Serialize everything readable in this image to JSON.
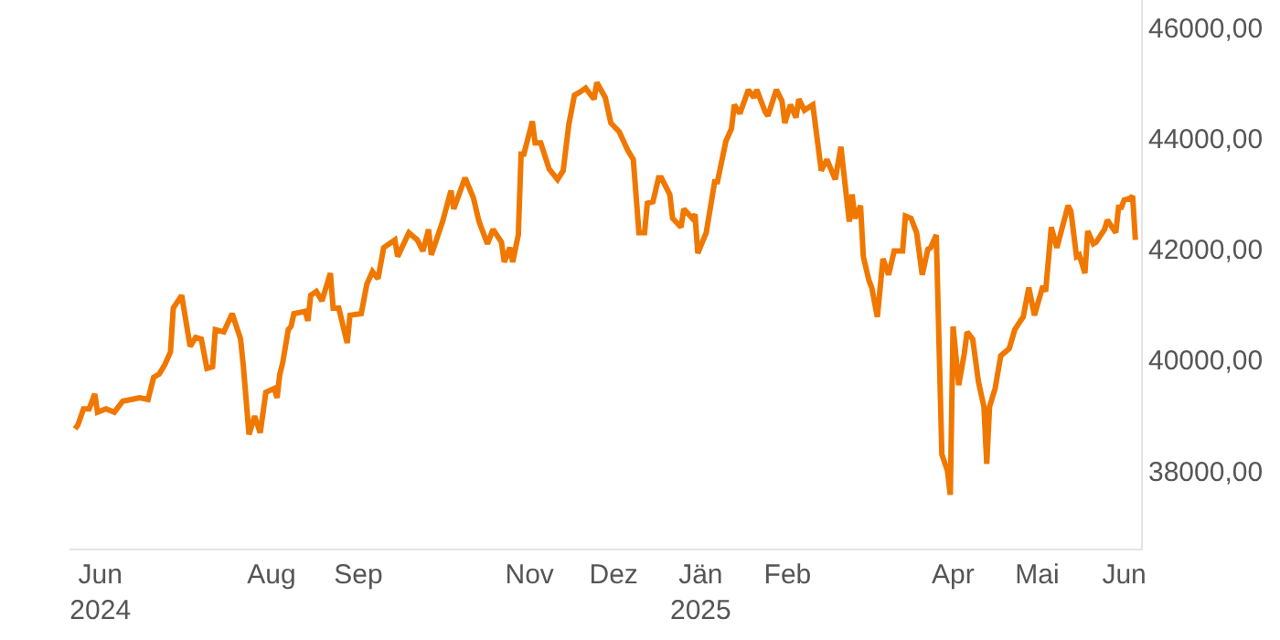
{
  "chart_data": {
    "type": "line",
    "x": [
      "2024-05-23",
      "2024-05-24",
      "2024-05-26",
      "2024-05-28",
      "2024-05-30",
      "2024-05-31",
      "2024-06-03",
      "2024-06-06",
      "2024-06-09",
      "2024-06-12",
      "2024-06-15",
      "2024-06-18",
      "2024-06-20",
      "2024-06-22",
      "2024-06-24",
      "2024-06-26",
      "2024-06-27",
      "2024-06-30",
      "2024-07-03",
      "2024-07-05",
      "2024-07-07",
      "2024-07-09",
      "2024-07-11",
      "2024-07-12",
      "2024-07-15",
      "2024-07-18",
      "2024-07-21",
      "2024-07-22",
      "2024-07-24",
      "2024-07-26",
      "2024-07-28",
      "2024-07-30",
      "2024-08-02",
      "2024-08-03",
      "2024-08-04",
      "2024-08-05",
      "2024-08-07",
      "2024-08-08",
      "2024-08-09",
      "2024-08-13",
      "2024-08-14",
      "2024-08-15",
      "2024-08-17",
      "2024-08-19",
      "2024-08-22",
      "2024-08-23",
      "2024-08-25",
      "2024-08-28",
      "2024-08-29",
      "2024-09-02",
      "2024-09-04",
      "2024-09-06",
      "2024-09-08",
      "2024-09-10",
      "2024-09-14",
      "2024-09-15",
      "2024-09-19",
      "2024-09-22",
      "2024-09-24",
      "2024-09-26",
      "2024-09-27",
      "2024-10-01",
      "2024-10-04",
      "2024-10-05",
      "2024-10-09",
      "2024-10-12",
      "2024-10-14",
      "2024-10-17",
      "2024-10-19",
      "2024-10-22",
      "2024-10-23",
      "2024-10-25",
      "2024-10-26",
      "2024-10-28",
      "2024-10-29",
      "2024-10-30",
      "2024-11-02",
      "2024-11-03",
      "2024-11-05",
      "2024-11-08",
      "2024-11-11",
      "2024-11-13",
      "2024-11-15",
      "2024-11-17",
      "2024-11-19",
      "2024-11-21",
      "2024-11-24",
      "2024-11-25",
      "2024-11-28",
      "2024-11-30",
      "2024-12-03",
      "2024-12-06",
      "2024-12-08",
      "2024-12-10",
      "2024-12-12",
      "2024-12-13",
      "2024-12-15",
      "2024-12-17",
      "2024-12-18",
      "2024-12-21",
      "2024-12-22",
      "2024-12-25",
      "2024-12-26",
      "2024-12-29",
      "2024-12-30",
      "2024-12-31",
      "2025-01-03",
      "2025-01-06",
      "2025-01-07",
      "2025-01-10",
      "2025-01-12",
      "2025-01-13",
      "2025-01-15",
      "2025-01-18",
      "2025-01-20",
      "2025-01-21",
      "2025-01-24",
      "2025-01-25",
      "2025-01-28",
      "2025-01-30",
      "2025-01-31",
      "2025-02-02",
      "2025-02-04",
      "2025-02-05",
      "2025-02-07",
      "2025-02-10",
      "2025-02-13",
      "2025-02-15",
      "2025-02-18",
      "2025-02-20",
      "2025-02-23",
      "2025-02-24",
      "2025-02-25",
      "2025-02-27",
      "2025-02-28",
      "2025-03-02",
      "2025-03-03",
      "2025-03-05",
      "2025-03-07",
      "2025-03-09",
      "2025-03-11",
      "2025-03-14",
      "2025-03-15",
      "2025-03-17",
      "2025-03-19",
      "2025-03-21",
      "2025-03-23",
      "2025-03-24",
      "2025-03-26",
      "2025-03-28",
      "2025-03-30",
      "2025-03-31",
      "2025-04-01",
      "2025-04-03",
      "2025-04-05",
      "2025-04-06",
      "2025-04-08",
      "2025-04-10",
      "2025-04-12",
      "2025-04-13",
      "2025-04-14",
      "2025-04-16",
      "2025-04-18",
      "2025-04-21",
      "2025-04-23",
      "2025-04-25",
      "2025-04-26",
      "2025-04-28",
      "2025-04-30",
      "2025-05-03",
      "2025-05-04",
      "2025-05-06",
      "2025-05-08",
      "2025-05-12",
      "2025-05-13",
      "2025-05-15",
      "2025-05-16",
      "2025-05-18",
      "2025-05-19",
      "2025-05-21",
      "2025-05-22",
      "2025-05-25",
      "2025-05-26",
      "2025-05-29",
      "2025-05-30",
      "2025-05-31",
      "2025-06-01",
      "2025-06-03",
      "2025-06-04",
      "2025-06-05"
    ],
    "series": [
      {
        "color": "#f07800",
        "values": [
          38760,
          38830,
          39120,
          39120,
          39390,
          39060,
          39120,
          39060,
          39260,
          39290,
          39320,
          39290,
          39690,
          39750,
          39920,
          40150,
          40940,
          41170,
          40250,
          40410,
          40380,
          39850,
          39880,
          40550,
          40510,
          40840,
          40380,
          39880,
          38660,
          38990,
          38690,
          39420,
          39490,
          39320,
          39750,
          39950,
          40550,
          40610,
          40840,
          40880,
          40710,
          41170,
          41240,
          41070,
          41570,
          40940,
          40940,
          40310,
          40810,
          40840,
          41370,
          41600,
          41470,
          42030,
          42170,
          41870,
          42300,
          42170,
          41970,
          42360,
          41900,
          42500,
          43060,
          42730,
          43290,
          42930,
          42500,
          42100,
          42360,
          42130,
          41770,
          42030,
          41770,
          42260,
          43720,
          43720,
          44310,
          43920,
          43920,
          43450,
          43260,
          43420,
          44250,
          44780,
          44840,
          44910,
          44710,
          45010,
          44740,
          44280,
          44120,
          43790,
          43620,
          42300,
          42300,
          42830,
          42860,
          43290,
          43290,
          42990,
          42560,
          42400,
          42730,
          42560,
          42630,
          41930,
          42300,
          43220,
          43220,
          43950,
          44180,
          44610,
          44450,
          44880,
          44740,
          44880,
          44480,
          44410,
          44880,
          44680,
          44280,
          44610,
          44380,
          44710,
          44510,
          44610,
          43420,
          43620,
          43260,
          43850,
          42500,
          42990,
          42560,
          42790,
          41870,
          41440,
          41310,
          40780,
          41830,
          41540,
          41970,
          41970,
          42600,
          42560,
          42300,
          41540,
          42000,
          42030,
          42260,
          38300,
          38000,
          37570,
          40610,
          39550,
          40120,
          40510,
          40380,
          39620,
          39160,
          38130,
          39160,
          39490,
          40080,
          40210,
          40550,
          40710,
          40780,
          41310,
          40810,
          41340,
          41240,
          42400,
          42030,
          42790,
          42690,
          41870,
          41900,
          41570,
          42330,
          42100,
          42130,
          42360,
          42530,
          42300,
          42760,
          42760,
          42890,
          42920,
          42960,
          42170
        ]
      }
    ],
    "xticks": [
      {
        "value": "2024-06-01",
        "label": "Jun\n2024"
      },
      {
        "value": "2024-08-01",
        "label": "Aug"
      },
      {
        "value": "2024-09-01",
        "label": "Sep"
      },
      {
        "value": "2024-11-01",
        "label": "Nov"
      },
      {
        "value": "2024-12-01",
        "label": "Dez"
      },
      {
        "value": "2025-01-01",
        "label": "Jän\n2025"
      },
      {
        "value": "2025-02-01",
        "label": "Feb"
      },
      {
        "value": "2025-04-01",
        "label": "Apr"
      },
      {
        "value": "2025-05-01",
        "label": "Mai"
      },
      {
        "value": "2025-06-01",
        "label": "Jun"
      }
    ],
    "xlim": [
      "2024-05-21",
      "2025-06-07"
    ],
    "ylim": [
      36600,
      46500
    ],
    "yticks": [
      {
        "value": 38000,
        "label": "38000,00"
      },
      {
        "value": 40000,
        "label": "40000,00"
      },
      {
        "value": 42000,
        "label": "42000,00"
      },
      {
        "value": 44000,
        "label": "44000,00"
      },
      {
        "value": 46000,
        "label": "46000,00"
      }
    ],
    "legend": false,
    "marker": "none",
    "line_style": "solid"
  }
}
